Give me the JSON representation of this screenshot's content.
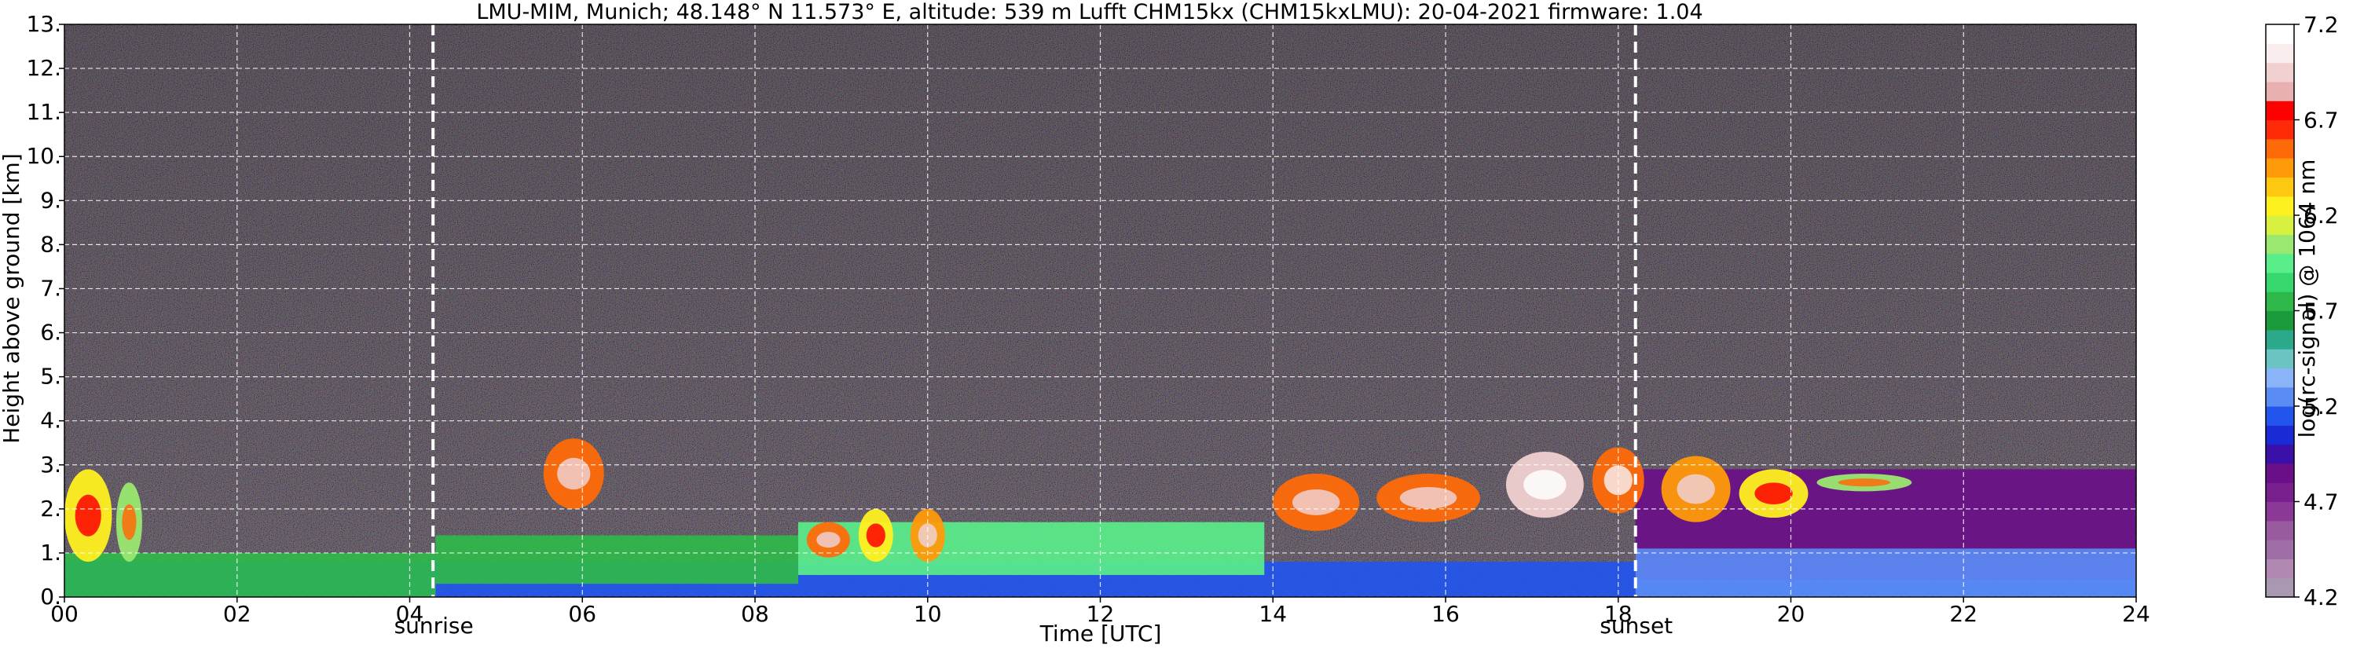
{
  "chart_data": {
    "type": "heatmap",
    "title": "LMU-MIM, Munich; 48.148° N 11.573° E, altitude: 539 m    Lufft CHM15kx (CHM15kxLMU): 20-04-2021    firmware: 1.04",
    "xlabel": "Time [UTC]",
    "ylabel": "Height above ground [km]",
    "xlim": [
      0,
      24
    ],
    "ylim": [
      0,
      13
    ],
    "x_ticks": [
      0,
      2,
      4,
      6,
      8,
      10,
      12,
      14,
      16,
      18,
      20,
      22,
      24
    ],
    "x_tick_labels": [
      "00",
      "02",
      "04",
      "06",
      "08",
      "10",
      "12",
      "14",
      "16",
      "18",
      "20",
      "22",
      "24"
    ],
    "y_ticks": [
      0,
      1,
      2,
      3,
      4,
      5,
      6,
      7,
      8,
      9,
      10,
      11,
      12,
      13
    ],
    "y_tick_labels": [
      "0.",
      "1.",
      "2.",
      "3.",
      "4.",
      "5.",
      "6.",
      "7.",
      "8.",
      "9.",
      "10.",
      "11.",
      "12.",
      "13."
    ],
    "grid": true,
    "markers": [
      {
        "label": "sunrise",
        "x": 4.27
      },
      {
        "label": "sunset",
        "x": 18.2
      }
    ],
    "colorbar": {
      "label": "log(rc-signal) @ 1064 nm",
      "range": [
        4.2,
        7.2
      ],
      "tick_values": [
        4.2,
        4.7,
        5.2,
        5.7,
        6.2,
        6.7,
        7.2
      ],
      "tick_labels": [
        "4.2",
        "4.7",
        "5.2",
        "5.7",
        "6.2",
        "6.7",
        "7.2"
      ],
      "colors": [
        "#a998b2",
        "#b088b2",
        "#a06ea6",
        "#985c9e",
        "#8a3a96",
        "#7a1f8e",
        "#6a0f88",
        "#3a10a8",
        "#1a2ad4",
        "#2255ee",
        "#5a8cf4",
        "#8ab4f8",
        "#6bc4c2",
        "#2aaa8a",
        "#1a9a3a",
        "#2fb84a",
        "#36d86e",
        "#5aee8a",
        "#9ae870",
        "#d8f040",
        "#fff020",
        "#ffc810",
        "#ff9a08",
        "#ff6a08",
        "#ff2a08",
        "#ff0000",
        "#e8b0b0",
        "#f0d0d0",
        "#f8ecec",
        "#ffffff"
      ]
    },
    "background_noise_color": "#3a2a3e",
    "layers": [
      {
        "name": "aerosol-base",
        "x_start": 0,
        "x_end": 24,
        "y_bottom": 0.0,
        "y_top": 0.8,
        "value": 5.15
      },
      {
        "name": "nocturnal-layer-morning",
        "x_start": 0,
        "x_end": 4.3,
        "y_bottom": 0.0,
        "y_top": 1.0,
        "value": 5.7
      },
      {
        "name": "boundary-layer-morning",
        "x_start": 4.3,
        "x_end": 8.5,
        "y_bottom": 0.3,
        "y_top": 1.4,
        "value": 5.8
      },
      {
        "name": "boundary-layer-midday",
        "x_start": 8.5,
        "x_end": 13.9,
        "y_bottom": 0.5,
        "y_top": 1.7,
        "value": 5.9
      },
      {
        "name": "residual-layer-evening",
        "x_start": 18.2,
        "x_end": 24,
        "y_bottom": 0.4,
        "y_top": 2.9,
        "value": 4.85
      },
      {
        "name": "evening-lower-layer",
        "x_start": 18.2,
        "x_end": 24,
        "y_bottom": 0.0,
        "y_top": 1.1,
        "value": 5.2
      }
    ],
    "clouds": [
      {
        "x_start": 0.0,
        "x_end": 0.55,
        "y_bottom": 0.8,
        "y_top": 2.9,
        "value": 6.3
      },
      {
        "x_start": 0.6,
        "x_end": 0.9,
        "y_bottom": 0.8,
        "y_top": 2.6,
        "value": 6.0
      },
      {
        "x_start": 5.55,
        "x_end": 6.25,
        "y_bottom": 2.0,
        "y_top": 3.6,
        "value": 6.5
      },
      {
        "x_start": 8.6,
        "x_end": 9.1,
        "y_bottom": 0.9,
        "y_top": 1.7,
        "value": 6.5
      },
      {
        "x_start": 9.2,
        "x_end": 9.6,
        "y_bottom": 0.8,
        "y_top": 2.0,
        "value": 6.2
      },
      {
        "x_start": 9.8,
        "x_end": 10.2,
        "y_bottom": 0.8,
        "y_top": 2.0,
        "value": 6.4
      },
      {
        "x_start": 14.0,
        "x_end": 15.0,
        "y_bottom": 1.5,
        "y_top": 2.8,
        "value": 6.5
      },
      {
        "x_start": 15.2,
        "x_end": 16.4,
        "y_bottom": 1.7,
        "y_top": 2.8,
        "value": 6.5
      },
      {
        "x_start": 16.7,
        "x_end": 17.6,
        "y_bottom": 1.8,
        "y_top": 3.3,
        "value": 7.0
      },
      {
        "x_start": 17.7,
        "x_end": 18.3,
        "y_bottom": 1.9,
        "y_top": 3.4,
        "value": 6.6
      },
      {
        "x_start": 18.5,
        "x_end": 19.3,
        "y_bottom": 1.7,
        "y_top": 3.2,
        "value": 6.4
      },
      {
        "x_start": 19.4,
        "x_end": 20.2,
        "y_bottom": 1.8,
        "y_top": 2.9,
        "value": 6.3
      },
      {
        "x_start": 20.3,
        "x_end": 21.4,
        "y_bottom": 2.4,
        "y_top": 2.8,
        "value": 6.0
      }
    ]
  }
}
